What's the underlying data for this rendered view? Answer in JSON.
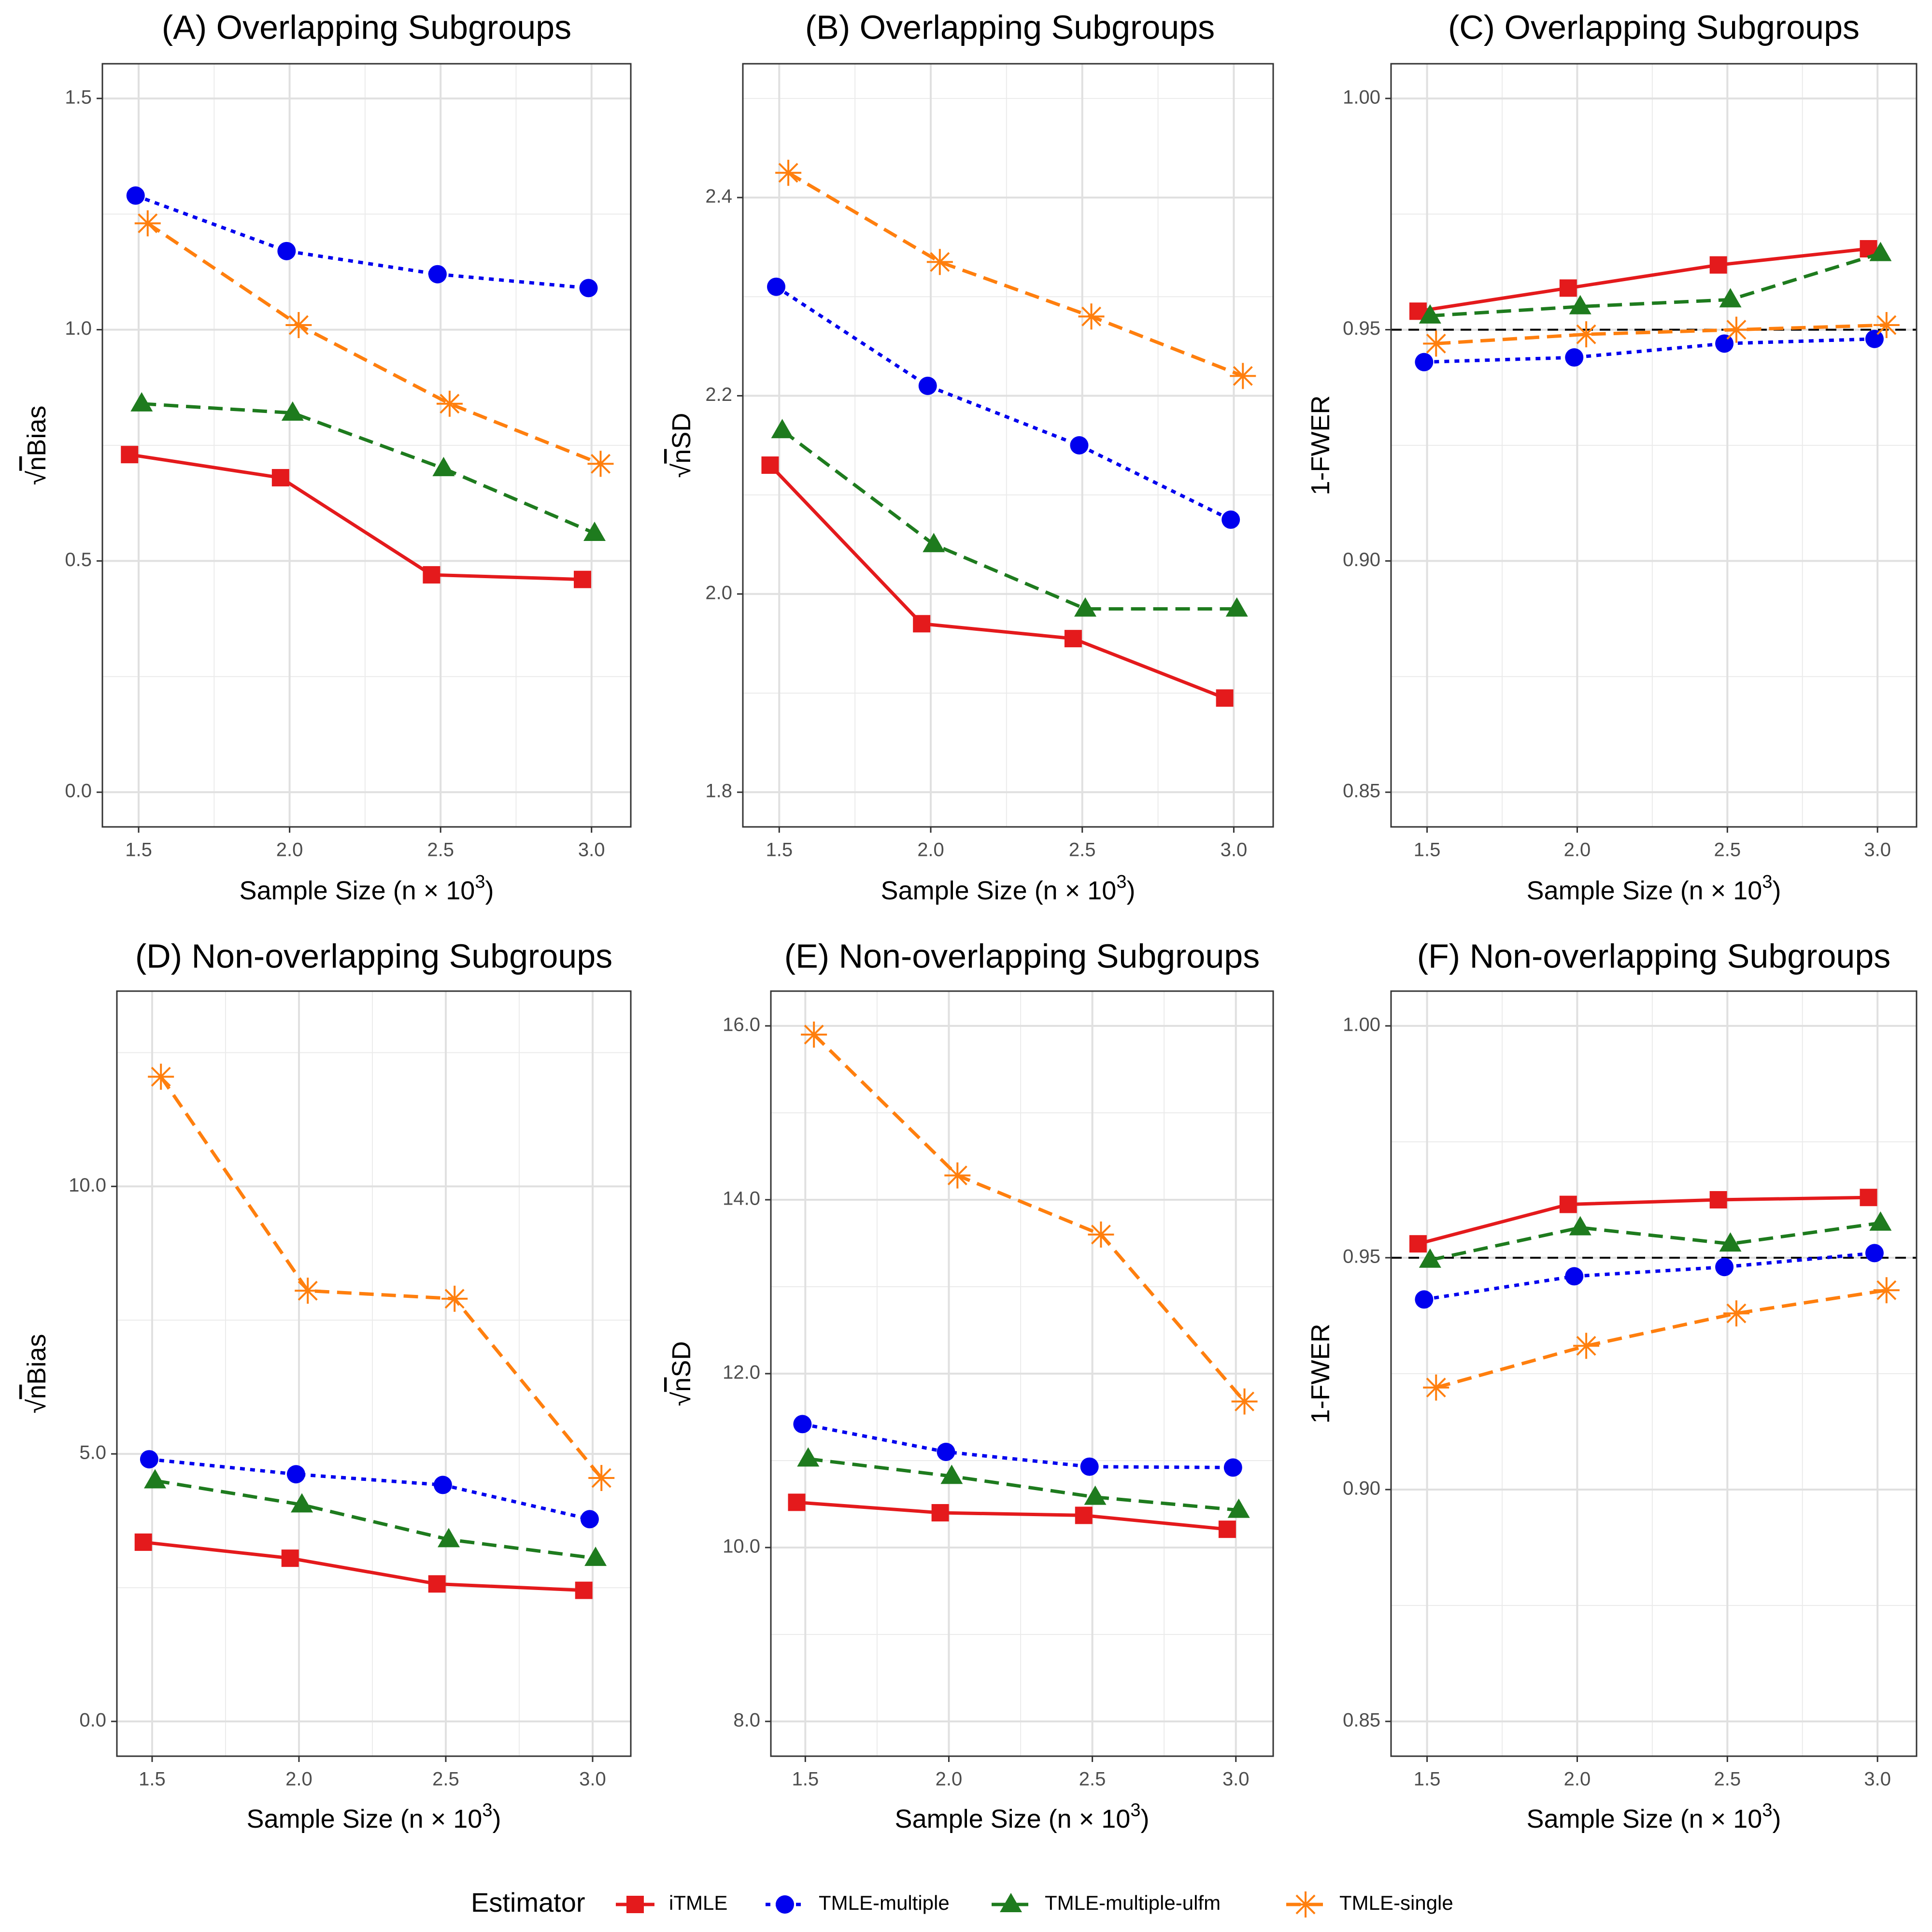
{
  "xlabel": "Sample Size (n × 10",
  "xlabel_sup": "3",
  "xlabel_close": ")",
  "legend": {
    "title": "Estimator",
    "items": [
      {
        "key": "iTMLE",
        "label": "iTMLE"
      },
      {
        "key": "TMLE-multiple",
        "label": "TMLE-multiple"
      },
      {
        "key": "TMLE-multiple-ulfm",
        "label": "TMLE-multiple-ulfm"
      },
      {
        "key": "TMLE-single",
        "label": "TMLE-single"
      }
    ]
  },
  "series_styles": {
    "iTMLE": {
      "color": "#E41A1C",
      "dash": "solid",
      "marker": "square"
    },
    "TMLE-multiple": {
      "color": "#0000EE",
      "dash": "dotted",
      "marker": "circle"
    },
    "TMLE-multiple-ulfm": {
      "color": "#1E7B1E",
      "dash": "dashed",
      "marker": "triangle"
    },
    "TMLE-single": {
      "color": "#FF7F0E",
      "dash": "dashed",
      "marker": "star"
    }
  },
  "chart_data": [
    {
      "type": "line",
      "title": "(A) Overlapping Subgroups",
      "ylabel_prefix": "√",
      "ylabel_over": "n",
      "ylabel_rest": "Bias",
      "xlim": [
        1.38,
        3.13
      ],
      "ylim": [
        -0.075,
        1.575
      ],
      "xticks": [
        1.5,
        2.0,
        2.5,
        3.0
      ],
      "xtick_labels": [
        "1.5",
        "2.0",
        "2.5",
        "3.0"
      ],
      "yticks": [
        0.0,
        0.5,
        1.0,
        1.5
      ],
      "ytick_labels": [
        "0.0",
        "0.5",
        "1.0",
        "1.5"
      ],
      "hline": null,
      "series": [
        {
          "name": "iTMLE",
          "x": [
            1.47,
            1.97,
            2.47,
            2.97
          ],
          "y": [
            0.73,
            0.68,
            0.47,
            0.46
          ]
        },
        {
          "name": "TMLE-multiple",
          "x": [
            1.49,
            1.99,
            2.49,
            2.99
          ],
          "y": [
            1.29,
            1.17,
            1.12,
            1.09
          ]
        },
        {
          "name": "TMLE-multiple-ulfm",
          "x": [
            1.51,
            2.01,
            2.51,
            3.01
          ],
          "y": [
            0.84,
            0.82,
            0.7,
            0.56
          ]
        },
        {
          "name": "TMLE-single",
          "x": [
            1.53,
            2.03,
            2.53,
            3.03
          ],
          "y": [
            1.23,
            1.01,
            0.84,
            0.71
          ]
        }
      ]
    },
    {
      "type": "line",
      "title": "(B) Overlapping Subgroups",
      "ylabel_prefix": "√",
      "ylabel_over": "n",
      "ylabel_rest": "SD",
      "xlim": [
        1.38,
        3.13
      ],
      "ylim": [
        1.765,
        2.535
      ],
      "xticks": [
        1.5,
        2.0,
        2.5,
        3.0
      ],
      "xtick_labels": [
        "1.5",
        "2.0",
        "2.5",
        "3.0"
      ],
      "yticks": [
        1.8,
        2.0,
        2.2,
        2.4
      ],
      "ytick_labels": [
        "1.8",
        "2.0",
        "2.2",
        "2.4"
      ],
      "hline": null,
      "series": [
        {
          "name": "iTMLE",
          "x": [
            1.47,
            1.97,
            2.47,
            2.97
          ],
          "y": [
            2.13,
            1.97,
            1.955,
            1.895
          ]
        },
        {
          "name": "TMLE-multiple",
          "x": [
            1.49,
            1.99,
            2.49,
            2.99
          ],
          "y": [
            2.31,
            2.21,
            2.15,
            2.075
          ]
        },
        {
          "name": "TMLE-multiple-ulfm",
          "x": [
            1.51,
            2.01,
            2.51,
            3.01
          ],
          "y": [
            2.165,
            2.05,
            1.985,
            1.985
          ]
        },
        {
          "name": "TMLE-single",
          "x": [
            1.53,
            2.03,
            2.53,
            3.03
          ],
          "y": [
            2.425,
            2.335,
            2.28,
            2.22
          ]
        }
      ]
    },
    {
      "type": "line",
      "title": "(C) Overlapping Subgroups",
      "ylabel_prefix": "",
      "ylabel_over": "",
      "ylabel_rest": "1-FWER",
      "xlim": [
        1.38,
        3.13
      ],
      "ylim": [
        0.8425,
        1.0075
      ],
      "xticks": [
        1.5,
        2.0,
        2.5,
        3.0
      ],
      "xtick_labels": [
        "1.5",
        "2.0",
        "2.5",
        "3.0"
      ],
      "yticks": [
        0.85,
        0.9,
        0.95,
        1.0
      ],
      "ytick_labels": [
        "0.85",
        "0.90",
        "0.95",
        "1.00"
      ],
      "hline": 0.95,
      "series": [
        {
          "name": "iTMLE",
          "x": [
            1.47,
            1.97,
            2.47,
            2.97
          ],
          "y": [
            0.954,
            0.959,
            0.964,
            0.9675
          ]
        },
        {
          "name": "TMLE-multiple",
          "x": [
            1.49,
            1.99,
            2.49,
            2.99
          ],
          "y": [
            0.943,
            0.944,
            0.947,
            0.948
          ]
        },
        {
          "name": "TMLE-multiple-ulfm",
          "x": [
            1.51,
            2.01,
            2.51,
            3.01
          ],
          "y": [
            0.953,
            0.955,
            0.9565,
            0.9665
          ]
        },
        {
          "name": "TMLE-single",
          "x": [
            1.53,
            2.03,
            2.53,
            3.03
          ],
          "y": [
            0.947,
            0.949,
            0.95,
            0.951
          ]
        }
      ]
    },
    {
      "type": "line",
      "title": "(D) Non-overlapping Subgroups",
      "ylabel_prefix": "√",
      "ylabel_over": "n",
      "ylabel_rest": "Bias",
      "xlim": [
        1.38,
        3.13
      ],
      "ylim": [
        -0.65,
        13.65
      ],
      "xticks": [
        1.5,
        2.0,
        2.5,
        3.0
      ],
      "xtick_labels": [
        "1.5",
        "2.0",
        "2.5",
        "3.0"
      ],
      "yticks": [
        0.0,
        5.0,
        10.0
      ],
      "ytick_labels": [
        "0.0",
        "5.0",
        "10.0"
      ],
      "hline": null,
      "series": [
        {
          "name": "iTMLE",
          "x": [
            1.47,
            1.97,
            2.47,
            2.97
          ],
          "y": [
            3.35,
            3.05,
            2.57,
            2.45
          ]
        },
        {
          "name": "TMLE-multiple",
          "x": [
            1.49,
            1.99,
            2.49,
            2.99
          ],
          "y": [
            4.9,
            4.62,
            4.42,
            3.78
          ]
        },
        {
          "name": "TMLE-multiple-ulfm",
          "x": [
            1.51,
            2.01,
            2.51,
            3.01
          ],
          "y": [
            4.5,
            4.05,
            3.4,
            3.05
          ]
        },
        {
          "name": "TMLE-single",
          "x": [
            1.53,
            2.03,
            2.53,
            3.03
          ],
          "y": [
            12.05,
            8.05,
            7.9,
            4.55
          ]
        }
      ]
    },
    {
      "type": "line",
      "title": "(E) Non-overlapping Subgroups",
      "ylabel_prefix": "√",
      "ylabel_over": "n",
      "ylabel_rest": "SD",
      "xlim": [
        1.38,
        3.13
      ],
      "ylim": [
        7.6,
        16.4
      ],
      "xticks": [
        1.5,
        2.0,
        2.5,
        3.0
      ],
      "xtick_labels": [
        "1.5",
        "2.0",
        "2.5",
        "3.0"
      ],
      "yticks": [
        8.0,
        10.0,
        12.0,
        14.0,
        16.0
      ],
      "ytick_labels": [
        "8.0",
        "10.0",
        "12.0",
        "14.0",
        "16.0"
      ],
      "hline": null,
      "series": [
        {
          "name": "iTMLE",
          "x": [
            1.47,
            1.97,
            2.47,
            2.97
          ],
          "y": [
            10.52,
            10.4,
            10.37,
            10.21
          ]
        },
        {
          "name": "TMLE-multiple",
          "x": [
            1.49,
            1.99,
            2.49,
            2.99
          ],
          "y": [
            11.42,
            11.1,
            10.93,
            10.92
          ]
        },
        {
          "name": "TMLE-multiple-ulfm",
          "x": [
            1.51,
            2.01,
            2.51,
            3.01
          ],
          "y": [
            11.02,
            10.82,
            10.58,
            10.43
          ]
        },
        {
          "name": "TMLE-single",
          "x": [
            1.53,
            2.03,
            2.53,
            3.03
          ],
          "y": [
            15.9,
            14.28,
            13.6,
            11.68
          ]
        }
      ]
    },
    {
      "type": "line",
      "title": "(F) Non-overlapping Subgroups",
      "ylabel_prefix": "",
      "ylabel_over": "",
      "ylabel_rest": "1-FWER",
      "xlim": [
        1.38,
        3.13
      ],
      "ylim": [
        0.8425,
        1.0075
      ],
      "xticks": [
        1.5,
        2.0,
        2.5,
        3.0
      ],
      "xtick_labels": [
        "1.5",
        "2.0",
        "2.5",
        "3.0"
      ],
      "yticks": [
        0.85,
        0.9,
        0.95,
        1.0
      ],
      "ytick_labels": [
        "0.85",
        "0.90",
        "0.95",
        "1.00"
      ],
      "hline": 0.95,
      "series": [
        {
          "name": "iTMLE",
          "x": [
            1.47,
            1.97,
            2.47,
            2.97
          ],
          "y": [
            0.953,
            0.9615,
            0.9625,
            0.963
          ]
        },
        {
          "name": "TMLE-multiple",
          "x": [
            1.49,
            1.99,
            2.49,
            2.99
          ],
          "y": [
            0.941,
            0.946,
            0.948,
            0.951
          ]
        },
        {
          "name": "TMLE-multiple-ulfm",
          "x": [
            1.51,
            2.01,
            2.51,
            3.01
          ],
          "y": [
            0.9495,
            0.9565,
            0.953,
            0.9575
          ]
        },
        {
          "name": "TMLE-single",
          "x": [
            1.53,
            2.03,
            2.53,
            3.03
          ],
          "y": [
            0.922,
            0.931,
            0.938,
            0.943
          ]
        }
      ]
    }
  ]
}
